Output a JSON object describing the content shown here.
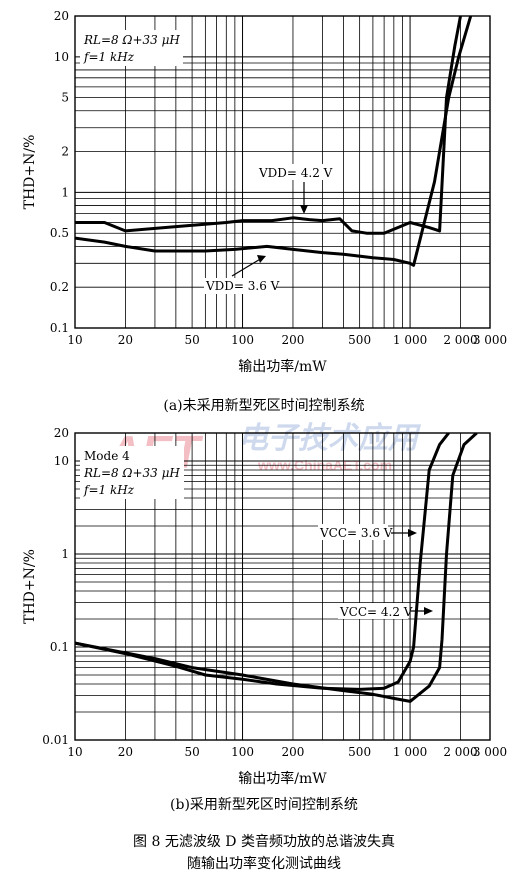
{
  "watermark": {
    "brand": "AET",
    "cn": "电子技术应用",
    "url": "www.ChinaAET.com",
    "color": "#e8808a"
  },
  "charts": [
    {
      "chart_data": {
        "type": "line",
        "scale": "log-log",
        "grid": true,
        "xlabel": "输出功率/mW",
        "ylabel": "THD+N/%",
        "xlim": [
          10,
          3000
        ],
        "ylim": [
          0.1,
          20
        ],
        "xticks": [
          10,
          20,
          50,
          100,
          200,
          500,
          1000,
          2000,
          3000
        ],
        "xticklabels": [
          "10",
          "20",
          "50",
          "100",
          "200",
          "500",
          "1 000",
          "2 000",
          "3 000"
        ],
        "yticks": [
          0.1,
          0.2,
          0.5,
          1,
          2,
          5,
          10,
          20
        ],
        "yticklabels": [
          "0.1",
          "0.2",
          "0.5",
          "1",
          "2",
          "5",
          "10",
          "20"
        ],
        "conditions": [
          "RL=8 Ω+33 μH",
          "f=1 kHz"
        ],
        "series": [
          {
            "label": "VDD= 4.2 V",
            "points": [
              [
                10,
                0.6
              ],
              [
                15,
                0.6
              ],
              [
                20,
                0.52
              ],
              [
                40,
                0.56
              ],
              [
                80,
                0.6
              ],
              [
                100,
                0.62
              ],
              [
                150,
                0.62
              ],
              [
                200,
                0.65
              ],
              [
                250,
                0.63
              ],
              [
                300,
                0.62
              ],
              [
                380,
                0.64
              ],
              [
                450,
                0.52
              ],
              [
                550,
                0.5
              ],
              [
                700,
                0.5
              ],
              [
                1000,
                0.6
              ],
              [
                1300,
                0.55
              ],
              [
                1500,
                0.52
              ],
              [
                1650,
                5
              ],
              [
                1850,
                12
              ],
              [
                2000,
                20
              ]
            ]
          },
          {
            "label": "VDD= 3.6 V",
            "points": [
              [
                10,
                0.46
              ],
              [
                15,
                0.43
              ],
              [
                20,
                0.4
              ],
              [
                30,
                0.37
              ],
              [
                50,
                0.37
              ],
              [
                60,
                0.37
              ],
              [
                90,
                0.38
              ],
              [
                140,
                0.4
              ],
              [
                200,
                0.38
              ],
              [
                300,
                0.36
              ],
              [
                400,
                0.35
              ],
              [
                600,
                0.33
              ],
              [
                800,
                0.32
              ],
              [
                1000,
                0.3
              ],
              [
                1050,
                0.29
              ],
              [
                1400,
                1.2
              ],
              [
                1700,
                5
              ],
              [
                1950,
                10
              ],
              [
                2300,
                20
              ]
            ]
          }
        ],
        "annotations": [
          {
            "text": "VDD= 4.2 V",
            "target": [
              270,
              0.62
            ]
          },
          {
            "text": "VDD= 3.6 V",
            "target": [
              150,
              0.4
            ]
          }
        ],
        "caption": "(a)未采用新型死区时间控制系统"
      }
    },
    {
      "chart_data": {
        "type": "line",
        "scale": "log-log",
        "grid": true,
        "xlabel": "输出功率/mW",
        "ylabel": "THD+N/%",
        "xlim": [
          10,
          3000
        ],
        "ylim": [
          0.01,
          20
        ],
        "xticks": [
          10,
          20,
          50,
          100,
          200,
          500,
          1000,
          2000,
          3000
        ],
        "xticklabels": [
          "10",
          "20",
          "50",
          "100",
          "200",
          "500",
          "1 000",
          "2 000",
          "3 000"
        ],
        "yticks": [
          0.01,
          0.1,
          1,
          10,
          20
        ],
        "yticklabels": [
          "0.01",
          "0.1",
          "1",
          "10",
          "20"
        ],
        "conditions": [
          "Mode 4",
          "RL=8 Ω+33 μH",
          "f=1 kHz"
        ],
        "series": [
          {
            "label": "VCC= 3.6 V",
            "points": [
              [
                10,
                0.11
              ],
              [
                20,
                0.085
              ],
              [
                40,
                0.062
              ],
              [
                60,
                0.05
              ],
              [
                100,
                0.045
              ],
              [
                160,
                0.04
              ],
              [
                300,
                0.036
              ],
              [
                500,
                0.035
              ],
              [
                700,
                0.036
              ],
              [
                850,
                0.042
              ],
              [
                1000,
                0.07
              ],
              [
                1050,
                0.1
              ],
              [
                1150,
                0.8
              ],
              [
                1300,
                8
              ],
              [
                1500,
                15
              ],
              [
                1700,
                20
              ]
            ]
          },
          {
            "label": "VCC= 4.2 V",
            "points": [
              [
                10,
                0.11
              ],
              [
                30,
                0.075
              ],
              [
                50,
                0.06
              ],
              [
                100,
                0.05
              ],
              [
                200,
                0.04
              ],
              [
                400,
                0.034
              ],
              [
                600,
                0.031
              ],
              [
                800,
                0.028
              ],
              [
                1000,
                0.026
              ],
              [
                1300,
                0.038
              ],
              [
                1500,
                0.06
              ],
              [
                1550,
                0.12
              ],
              [
                1650,
                1
              ],
              [
                1800,
                7
              ],
              [
                2100,
                15
              ],
              [
                2500,
                20
              ]
            ]
          }
        ],
        "annotations": [
          {
            "text": "VCC= 3.6 V",
            "target": [
              1200,
              3
            ]
          },
          {
            "text": "VCC= 4.2 V",
            "target": [
              1650,
              0.42
            ]
          }
        ],
        "caption": "(b)采用新型死区时间控制系统"
      }
    }
  ],
  "figure_caption": {
    "line1": "图 8  无滤波级 D 类音频功放的总谐波失真",
    "line2": "随输出功率变化测试曲线"
  }
}
